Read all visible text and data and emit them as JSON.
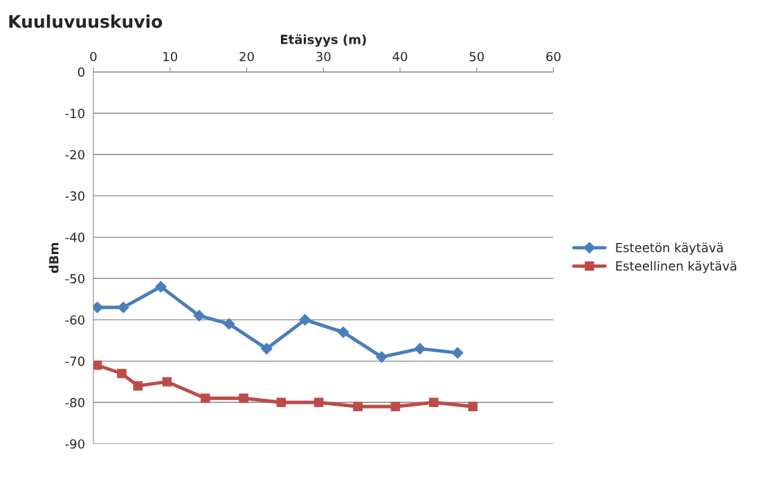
{
  "chart_data": {
    "type": "line",
    "title": "Kuuluvuuskuvio",
    "xlabel": "Etäisyys (m)",
    "ylabel": "dBm",
    "xlim": [
      0,
      60
    ],
    "xticks": [
      0,
      10,
      20,
      30,
      40,
      50,
      60
    ],
    "ylim": [
      -90,
      0
    ],
    "yticks": [
      0,
      -10,
      -20,
      -30,
      -40,
      -50,
      -60,
      -70,
      -80,
      -90
    ],
    "grid": "y",
    "legend": "right",
    "line_style": "solid",
    "series": [
      {
        "name": "Esteetön käytävä",
        "color": "#4a7ebb",
        "marker": "diamond",
        "x": [
          0.5,
          3.9,
          8.8,
          13.8,
          17.7,
          22.6,
          27.6,
          32.6,
          37.6,
          42.6,
          47.5
        ],
        "values": [
          -57,
          -57,
          -52,
          -59,
          -61,
          -67,
          -60,
          -63,
          -69,
          -67,
          -68
        ]
      },
      {
        "name": "Esteellinen käytävä",
        "color": "#be4b48",
        "marker": "square",
        "x": [
          0.5,
          3.7,
          5.8,
          9.6,
          14.6,
          19.6,
          24.5,
          29.4,
          34.5,
          39.4,
          44.4,
          49.5
        ],
        "values": [
          -71,
          -73,
          -76,
          -75,
          -79,
          -79,
          -80,
          -80,
          -81,
          -81,
          -80,
          -81
        ]
      }
    ]
  }
}
